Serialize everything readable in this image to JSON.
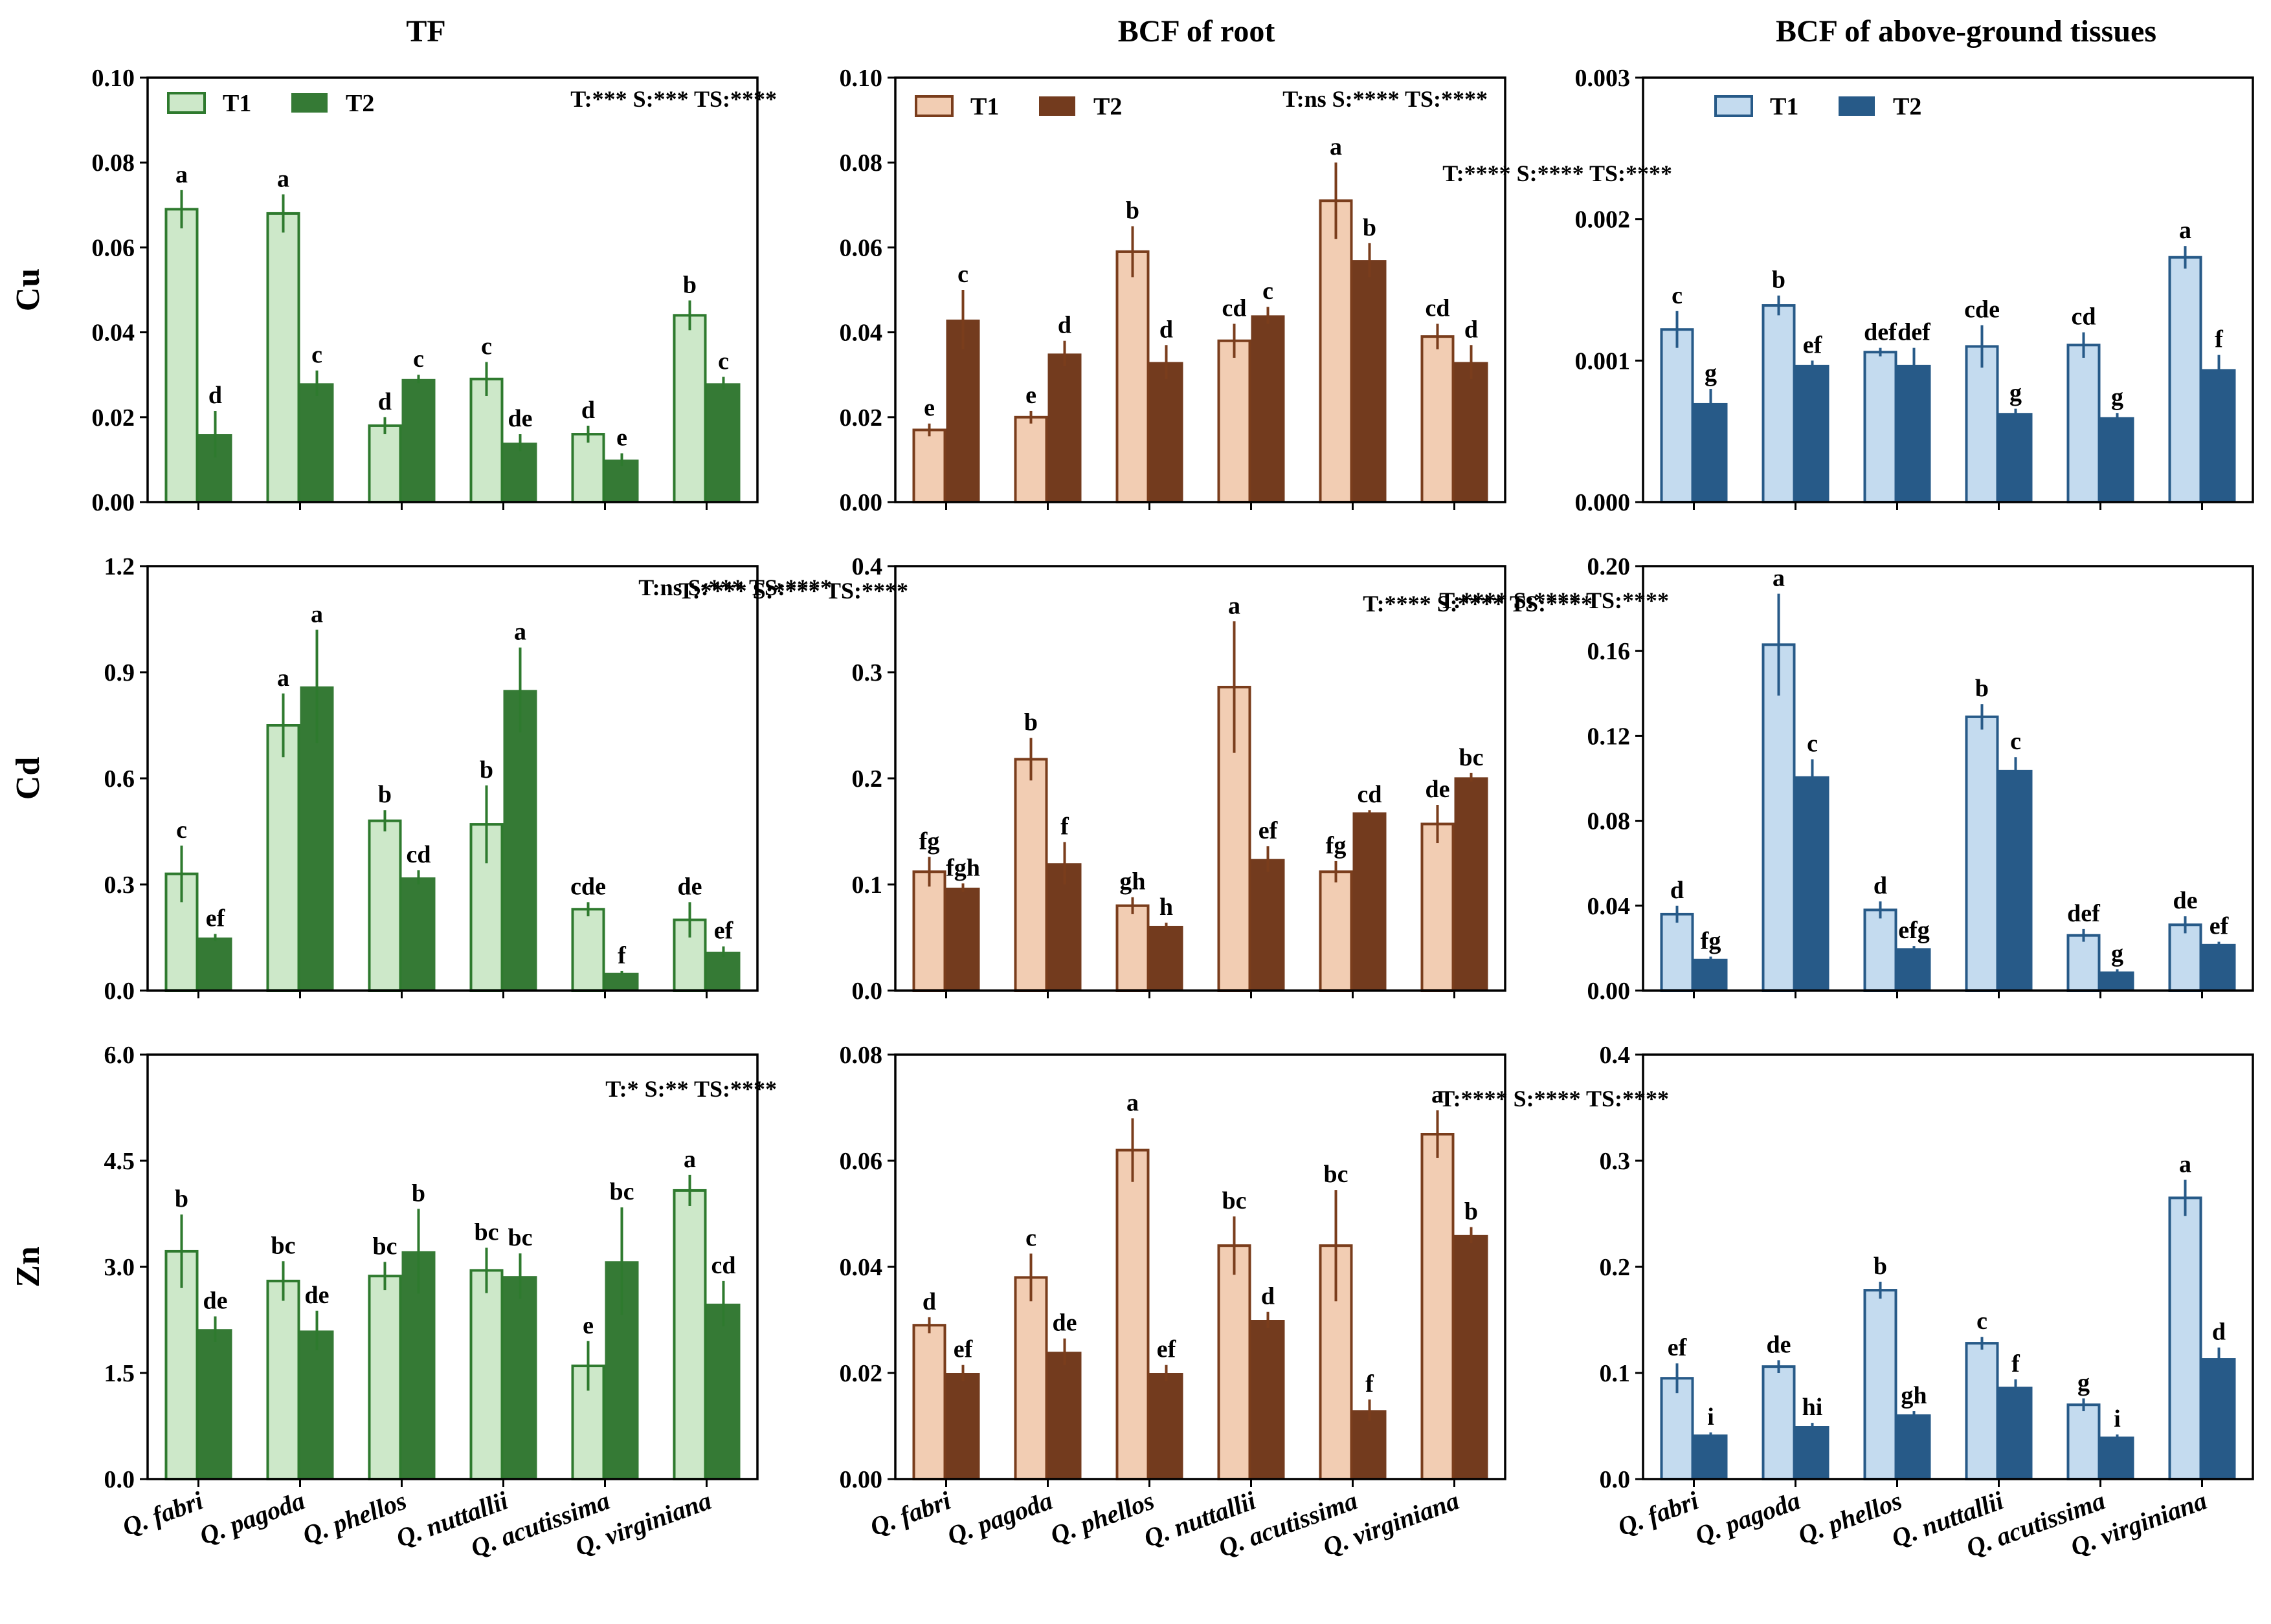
{
  "species": [
    "Q. fabri",
    "Q. pagoda",
    "Q. phellos",
    "Q. nuttallii",
    "Q. acutissima",
    "Q. virginiana"
  ],
  "column_titles": [
    "TF",
    "BCF of root",
    "BCF of above-ground tissues"
  ],
  "row_labels": [
    "Cu",
    "Cd",
    "Zn"
  ],
  "palettes": [
    {
      "t1": "#cde8c9",
      "t2": "#357a35",
      "edge": "#2e7a2e"
    },
    {
      "t1": "#f2cdb3",
      "t2": "#733b1e",
      "edge": "#7a3d1c"
    },
    {
      "t1": "#c4dbef",
      "t2": "#275a88",
      "edge": "#275a88"
    }
  ],
  "chart_data": [
    {
      "type": "bar",
      "title": "TF",
      "row": "Cu",
      "col": 0,
      "ylim": [
        0,
        0.1
      ],
      "yticks": [
        "0.00",
        "0.02",
        "0.04",
        "0.06",
        "0.08",
        "0.10"
      ],
      "stats": "T:***  S:***  TS:****",
      "legend": [
        "T1",
        "T2"
      ],
      "series": [
        {
          "name": "T1",
          "values": [
            0.069,
            0.068,
            0.018,
            0.029,
            0.016,
            0.044
          ],
          "errors": [
            0.0045,
            0.0045,
            0.002,
            0.004,
            0.002,
            0.0035
          ],
          "letters": [
            "a",
            "a",
            "d",
            "c",
            "d",
            "b"
          ]
        },
        {
          "name": "T2",
          "values": [
            0.016,
            0.028,
            0.029,
            0.014,
            0.01,
            0.028
          ],
          "errors": [
            0.0055,
            0.003,
            0.001,
            0.002,
            0.0015,
            0.0015
          ],
          "letters": [
            "d",
            "c",
            "c",
            "de",
            "e",
            "c"
          ]
        }
      ]
    },
    {
      "type": "bar",
      "title": "BCF of root",
      "row": "Cu",
      "col": 1,
      "ylim": [
        0,
        0.1
      ],
      "yticks": [
        "0.00",
        "0.02",
        "0.04",
        "0.06",
        "0.08",
        "0.10"
      ],
      "stats": "T:ns  S:****  TS:****",
      "legend": [
        "T1",
        "T2"
      ],
      "series": [
        {
          "name": "T1",
          "values": [
            0.017,
            0.02,
            0.059,
            0.038,
            0.071,
            0.039
          ],
          "errors": [
            0.0015,
            0.0015,
            0.006,
            0.004,
            0.009,
            0.003
          ],
          "letters": [
            "e",
            "e",
            "b",
            "cd",
            "a",
            "cd"
          ]
        },
        {
          "name": "T2",
          "values": [
            0.043,
            0.035,
            0.033,
            0.044,
            0.057,
            0.033
          ],
          "errors": [
            0.007,
            0.003,
            0.004,
            0.002,
            0.004,
            0.004
          ],
          "letters": [
            "c",
            "d",
            "d",
            "c",
            "b",
            "d"
          ]
        }
      ]
    },
    {
      "type": "bar",
      "title": "BCF of above-ground tissues",
      "row": "Cu",
      "col": 2,
      "ylim": [
        0,
        0.003
      ],
      "yticks": [
        "0.000",
        "0.001",
        "0.002",
        "0.003"
      ],
      "stats": "T:****  S:****  TS:****",
      "legend": [
        "T1",
        "T2"
      ],
      "series": [
        {
          "name": "T1",
          "values": [
            0.00122,
            0.00139,
            0.00106,
            0.0011,
            0.00111,
            0.00173
          ],
          "errors": [
            0.00013,
            7e-05,
            3e-05,
            0.00015,
            9e-05,
            8e-05
          ],
          "letters": [
            "c",
            "b",
            "def",
            "cde",
            "cd",
            "a"
          ]
        },
        {
          "name": "T2",
          "values": [
            0.0007,
            0.00097,
            0.00097,
            0.00063,
            0.0006,
            0.00094
          ],
          "errors": [
            0.0001,
            3e-05,
            0.00012,
            3e-05,
            3e-05,
            0.0001
          ],
          "letters": [
            "g",
            "ef",
            "def",
            "g",
            "g",
            "f"
          ]
        }
      ]
    },
    {
      "type": "bar",
      "title": "TF",
      "row": "Cd",
      "col": 0,
      "ylim": [
        0,
        1.2
      ],
      "yticks": [
        "0.0",
        "0.3",
        "0.6",
        "0.9",
        "1.2"
      ],
      "stats": "T:ns  S:***  TS:****",
      "legend": [],
      "series": [
        {
          "name": "T1",
          "values": [
            0.33,
            0.75,
            0.48,
            0.47,
            0.23,
            0.2
          ],
          "errors": [
            0.08,
            0.09,
            0.03,
            0.11,
            0.02,
            0.05
          ],
          "letters": [
            "c",
            "a",
            "b",
            "b",
            "cde",
            "de"
          ]
        },
        {
          "name": "T2",
          "values": [
            0.15,
            0.86,
            0.32,
            0.85,
            0.05,
            0.11
          ],
          "errors": [
            0.01,
            0.16,
            0.02,
            0.12,
            0.005,
            0.015
          ],
          "letters": [
            "ef",
            "a",
            "cd",
            "a",
            "f",
            "ef"
          ]
        }
      ]
    },
    {
      "type": "bar",
      "title": "BCF of root",
      "row": "Cd",
      "col": 1,
      "ylim": [
        0,
        0.4
      ],
      "yticks": [
        "0.0",
        "0.1",
        "0.2",
        "0.3",
        "0.4"
      ],
      "stats": "T:****  S:****  TS:****",
      "legend": [],
      "series": [
        {
          "name": "T1",
          "values": [
            0.112,
            0.218,
            0.08,
            0.286,
            0.112,
            0.157
          ],
          "errors": [
            0.014,
            0.02,
            0.008,
            0.062,
            0.01,
            0.018
          ],
          "letters": [
            "fg",
            "b",
            "gh",
            "a",
            "fg",
            "de"
          ]
        },
        {
          "name": "T2",
          "values": [
            0.097,
            0.12,
            0.061,
            0.124,
            0.168,
            0.201
          ],
          "errors": [
            0.004,
            0.02,
            0.003,
            0.012,
            0.002,
            0.004
          ],
          "letters": [
            "fgh",
            "f",
            "h",
            "ef",
            "cd",
            "bc"
          ]
        }
      ]
    },
    {
      "type": "bar",
      "title": "BCF of above-ground tissues",
      "row": "Cd",
      "col": 2,
      "ylim": [
        0,
        0.2
      ],
      "yticks": [
        "0.00",
        "0.04",
        "0.08",
        "0.12",
        "0.16",
        "0.20"
      ],
      "stats": "T:****  S:****  TS:****",
      "legend": [],
      "series": [
        {
          "name": "T1",
          "values": [
            0.036,
            0.163,
            0.038,
            0.129,
            0.026,
            0.031
          ],
          "errors": [
            0.004,
            0.024,
            0.004,
            0.006,
            0.003,
            0.004
          ],
          "letters": [
            "d",
            "a",
            "d",
            "b",
            "def",
            "de"
          ]
        },
        {
          "name": "T2",
          "values": [
            0.015,
            0.101,
            0.02,
            0.104,
            0.009,
            0.022
          ],
          "errors": [
            0.001,
            0.008,
            0.001,
            0.006,
            0.001,
            0.001
          ],
          "letters": [
            "fg",
            "c",
            "efg",
            "c",
            "g",
            "ef"
          ]
        }
      ]
    },
    {
      "type": "bar",
      "title": "TF",
      "row": "Zn",
      "col": 0,
      "ylim": [
        0,
        6.0
      ],
      "yticks": [
        "0.0",
        "1.5",
        "3.0",
        "4.5",
        "6.0"
      ],
      "stats": "T:*  S:**  TS:****",
      "legend": [],
      "series": [
        {
          "name": "T1",
          "values": [
            3.22,
            2.8,
            2.87,
            2.95,
            1.6,
            4.08
          ],
          "errors": [
            0.52,
            0.28,
            0.2,
            0.32,
            0.35,
            0.22
          ],
          "letters": [
            "b",
            "bc",
            "bc",
            "bc",
            "e",
            "a"
          ]
        },
        {
          "name": "T2",
          "values": [
            2.12,
            2.1,
            3.22,
            2.87,
            3.08,
            2.48
          ],
          "errors": [
            0.18,
            0.28,
            0.6,
            0.32,
            0.76,
            0.32
          ],
          "letters": [
            "de",
            "de",
            "b",
            "bc",
            "bc",
            "cd"
          ]
        }
      ]
    },
    {
      "type": "bar",
      "title": "BCF of root",
      "row": "Zn",
      "col": 1,
      "ylim": [
        0,
        0.08
      ],
      "yticks": [
        "0.00",
        "0.02",
        "0.04",
        "0.06",
        "0.08"
      ],
      "stats": "T:****  S:****  TS:****",
      "legend": [],
      "series": [
        {
          "name": "T1",
          "values": [
            0.029,
            0.038,
            0.062,
            0.044,
            0.044,
            0.065
          ],
          "errors": [
            0.0015,
            0.0045,
            0.006,
            0.0055,
            0.0105,
            0.0045
          ],
          "letters": [
            "d",
            "c",
            "a",
            "bc",
            "bc",
            "a"
          ]
        },
        {
          "name": "T2",
          "values": [
            0.02,
            0.024,
            0.02,
            0.03,
            0.013,
            0.046
          ],
          "errors": [
            0.0015,
            0.0025,
            0.0015,
            0.0015,
            0.002,
            0.0015
          ],
          "letters": [
            "ef",
            "de",
            "ef",
            "d",
            "f",
            "b"
          ]
        }
      ]
    },
    {
      "type": "bar",
      "title": "BCF of above-ground tissues",
      "row": "Zn",
      "col": 2,
      "ylim": [
        0,
        0.4
      ],
      "yticks": [
        "0.0",
        "0.1",
        "0.2",
        "0.3",
        "0.4"
      ],
      "stats": "T:****  S:****  TS:****",
      "legend": [],
      "series": [
        {
          "name": "T1",
          "values": [
            0.095,
            0.106,
            0.178,
            0.128,
            0.07,
            0.265
          ],
          "errors": [
            0.014,
            0.006,
            0.008,
            0.006,
            0.006,
            0.017
          ],
          "letters": [
            "ef",
            "de",
            "b",
            "c",
            "g",
            "a"
          ]
        },
        {
          "name": "T2",
          "values": [
            0.042,
            0.05,
            0.061,
            0.087,
            0.04,
            0.114
          ],
          "errors": [
            0.002,
            0.003,
            0.003,
            0.007,
            0.002,
            0.01
          ],
          "letters": [
            "i",
            "hi",
            "gh",
            "f",
            "i",
            "d"
          ]
        }
      ]
    }
  ]
}
